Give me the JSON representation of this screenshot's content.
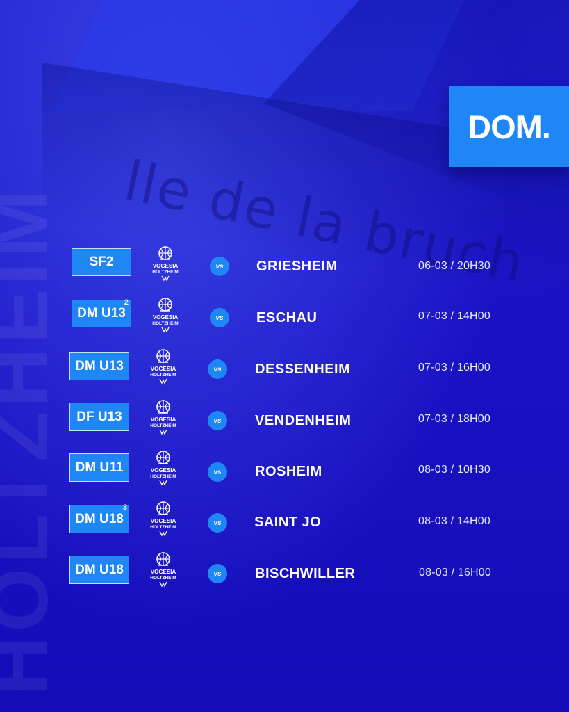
{
  "background": {
    "watermark_text": "HOLTZHEIM",
    "building_sign_text": "lle de la bruch"
  },
  "badge": {
    "label": "DOM."
  },
  "colors": {
    "accent": "#1f86f5",
    "background": "#1a0fc4"
  },
  "team": {
    "logo_name": "VOGESIA",
    "logo_sub": "HOLTZHEIM"
  },
  "vs_label": "vs",
  "matches": [
    {
      "category": "SF2",
      "team_number": "",
      "opponent": "GRIESHEIM",
      "datetime": "06-03 / 20H30"
    },
    {
      "category": "DM U13",
      "team_number": "2",
      "opponent": "ESCHAU",
      "datetime": "07-03 / 14H00"
    },
    {
      "category": "DM U13",
      "team_number": "",
      "opponent": "DESSENHEIM",
      "datetime": "07-03 / 16H00"
    },
    {
      "category": "DF U13",
      "team_number": "",
      "opponent": "VENDENHEIM",
      "datetime": "07-03 / 18H00"
    },
    {
      "category": "DM U11",
      "team_number": "",
      "opponent": "ROSHEIM",
      "datetime": "08-03 / 10H30"
    },
    {
      "category": "DM U18",
      "team_number": "3",
      "opponent": "SAINT JO",
      "datetime": "08-03 / 14H00"
    },
    {
      "category": "DM U18",
      "team_number": "",
      "opponent": "BISCHWILLER",
      "datetime": "08-03 / 16H00"
    }
  ]
}
